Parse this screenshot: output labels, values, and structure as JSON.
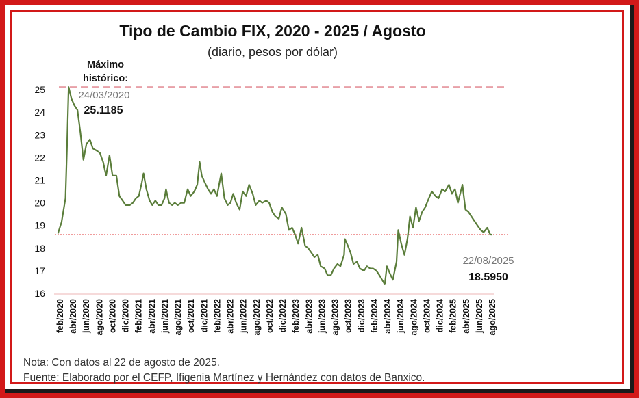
{
  "chart_data": {
    "type": "line",
    "title": "Tipo de Cambio FIX, 2020 - 2025 / Agosto",
    "subtitle": "(diario, pesos por dólar)",
    "ylim": [
      16,
      25.3
    ],
    "yticks": [
      "16",
      "17",
      "18",
      "19",
      "20",
      "21",
      "22",
      "23",
      "24",
      "25"
    ],
    "xticks": [
      "feb/2020",
      "abr/2020",
      "jun/2020",
      "ago/2020",
      "oct/2020",
      "dic/2020",
      "feb/2021",
      "abr/2021",
      "jun/2021",
      "ago/2021",
      "oct/2021",
      "dic/2021",
      "feb/2022",
      "abr/2022",
      "jun/2022",
      "ago/2022",
      "oct/2022",
      "dic/2022",
      "feb/2023",
      "abr/2023",
      "jun/2023",
      "ago/2023",
      "oct/2023",
      "dic/2023",
      "feb/2024",
      "abr/2024",
      "jun/2024",
      "ago/2024",
      "oct/2024",
      "dic/2024",
      "feb/2025",
      "abr/2025",
      "jun/2025",
      "ago/2025"
    ],
    "grid": false,
    "series": [
      {
        "color": "#5a7d3a",
        "points": [
          [
            "2020-02-03",
            18.65
          ],
          [
            "2020-02-20",
            19.15
          ],
          [
            "2020-03-09",
            20.2
          ],
          [
            "2020-03-16",
            22.3
          ],
          [
            "2020-03-24",
            25.1185
          ],
          [
            "2020-04-06",
            24.6
          ],
          [
            "2020-04-20",
            24.3
          ],
          [
            "2020-05-04",
            24.1
          ],
          [
            "2020-05-18",
            23.1
          ],
          [
            "2020-06-01",
            21.9
          ],
          [
            "2020-06-15",
            22.6
          ],
          [
            "2020-07-01",
            22.8
          ],
          [
            "2020-07-15",
            22.4
          ],
          [
            "2020-08-03",
            22.3
          ],
          [
            "2020-08-17",
            22.2
          ],
          [
            "2020-09-01",
            21.8
          ],
          [
            "2020-09-15",
            21.2
          ],
          [
            "2020-10-01",
            22.1
          ],
          [
            "2020-10-15",
            21.2
          ],
          [
            "2020-11-02",
            21.2
          ],
          [
            "2020-11-16",
            20.3
          ],
          [
            "2020-12-01",
            20.1
          ],
          [
            "2020-12-15",
            19.9
          ],
          [
            "2021-01-04",
            19.9
          ],
          [
            "2021-01-18",
            20.0
          ],
          [
            "2021-02-01",
            20.2
          ],
          [
            "2021-02-15",
            20.3
          ],
          [
            "2021-03-01",
            20.9
          ],
          [
            "2021-03-09",
            21.3
          ],
          [
            "2021-03-22",
            20.6
          ],
          [
            "2021-04-06",
            20.1
          ],
          [
            "2021-04-19",
            19.9
          ],
          [
            "2021-05-03",
            20.1
          ],
          [
            "2021-05-17",
            19.9
          ],
          [
            "2021-06-01",
            19.9
          ],
          [
            "2021-06-15",
            20.2
          ],
          [
            "2021-06-22",
            20.6
          ],
          [
            "2021-07-06",
            20.0
          ],
          [
            "2021-07-20",
            19.9
          ],
          [
            "2021-08-02",
            20.0
          ],
          [
            "2021-08-16",
            19.9
          ],
          [
            "2021-09-01",
            20.0
          ],
          [
            "2021-09-15",
            20.0
          ],
          [
            "2021-10-01",
            20.6
          ],
          [
            "2021-10-15",
            20.3
          ],
          [
            "2021-11-01",
            20.5
          ],
          [
            "2021-11-15",
            20.8
          ],
          [
            "2021-11-26",
            21.8
          ],
          [
            "2021-12-06",
            21.2
          ],
          [
            "2021-12-20",
            20.9
          ],
          [
            "2022-01-04",
            20.6
          ],
          [
            "2022-01-18",
            20.4
          ],
          [
            "2022-02-01",
            20.6
          ],
          [
            "2022-02-15",
            20.3
          ],
          [
            "2022-03-07",
            21.3
          ],
          [
            "2022-03-22",
            20.2
          ],
          [
            "2022-04-06",
            19.9
          ],
          [
            "2022-04-19",
            20.0
          ],
          [
            "2022-05-02",
            20.4
          ],
          [
            "2022-05-16",
            20.0
          ],
          [
            "2022-06-01",
            19.7
          ],
          [
            "2022-06-15",
            20.5
          ],
          [
            "2022-07-01",
            20.3
          ],
          [
            "2022-07-15",
            20.8
          ],
          [
            "2022-08-01",
            20.4
          ],
          [
            "2022-08-15",
            19.9
          ],
          [
            "2022-09-01",
            20.1
          ],
          [
            "2022-09-15",
            20.0
          ],
          [
            "2022-10-03",
            20.1
          ],
          [
            "2022-10-17",
            20.0
          ],
          [
            "2022-11-01",
            19.6
          ],
          [
            "2022-11-15",
            19.4
          ],
          [
            "2022-12-01",
            19.3
          ],
          [
            "2022-12-15",
            19.8
          ],
          [
            "2023-01-03",
            19.5
          ],
          [
            "2023-01-17",
            18.8
          ],
          [
            "2023-02-01",
            18.9
          ],
          [
            "2023-02-15",
            18.6
          ],
          [
            "2023-03-01",
            18.2
          ],
          [
            "2023-03-17",
            18.9
          ],
          [
            "2023-04-03",
            18.1
          ],
          [
            "2023-04-17",
            18.0
          ],
          [
            "2023-05-02",
            17.8
          ],
          [
            "2023-05-16",
            17.6
          ],
          [
            "2023-06-01",
            17.7
          ],
          [
            "2023-06-15",
            17.2
          ],
          [
            "2023-07-03",
            17.1
          ],
          [
            "2023-07-17",
            16.8
          ],
          [
            "2023-08-01",
            16.8
          ],
          [
            "2023-08-16",
            17.1
          ],
          [
            "2023-09-01",
            17.3
          ],
          [
            "2023-09-15",
            17.2
          ],
          [
            "2023-10-02",
            17.7
          ],
          [
            "2023-10-06",
            18.4
          ],
          [
            "2023-10-20",
            18.1
          ],
          [
            "2023-11-01",
            17.8
          ],
          [
            "2023-11-15",
            17.3
          ],
          [
            "2023-12-01",
            17.4
          ],
          [
            "2023-12-15",
            17.1
          ],
          [
            "2024-01-03",
            17.0
          ],
          [
            "2024-01-17",
            17.2
          ],
          [
            "2024-02-01",
            17.1
          ],
          [
            "2024-02-15",
            17.1
          ],
          [
            "2024-03-01",
            17.0
          ],
          [
            "2024-03-15",
            16.8
          ],
          [
            "2024-04-09",
            16.4
          ],
          [
            "2024-04-19",
            17.2
          ],
          [
            "2024-05-02",
            16.9
          ],
          [
            "2024-05-17",
            16.6
          ],
          [
            "2024-06-03",
            17.4
          ],
          [
            "2024-06-11",
            18.8
          ],
          [
            "2024-06-25",
            18.2
          ],
          [
            "2024-07-10",
            17.7
          ],
          [
            "2024-07-24",
            18.4
          ],
          [
            "2024-08-05",
            19.4
          ],
          [
            "2024-08-19",
            18.9
          ],
          [
            "2024-09-02",
            19.8
          ],
          [
            "2024-09-16",
            19.2
          ],
          [
            "2024-10-01",
            19.6
          ],
          [
            "2024-10-15",
            19.8
          ],
          [
            "2024-11-01",
            20.2
          ],
          [
            "2024-11-15",
            20.5
          ],
          [
            "2024-12-02",
            20.3
          ],
          [
            "2024-12-16",
            20.2
          ],
          [
            "2025-01-02",
            20.6
          ],
          [
            "2025-01-16",
            20.5
          ],
          [
            "2025-02-03",
            20.8
          ],
          [
            "2025-02-17",
            20.4
          ],
          [
            "2025-03-03",
            20.6
          ],
          [
            "2025-03-17",
            20.0
          ],
          [
            "2025-04-07",
            20.8
          ],
          [
            "2025-04-21",
            19.7
          ],
          [
            "2025-05-05",
            19.6
          ],
          [
            "2025-05-19",
            19.4
          ],
          [
            "2025-06-02",
            19.2
          ],
          [
            "2025-06-16",
            19.0
          ],
          [
            "2025-07-01",
            18.8
          ],
          [
            "2025-07-15",
            18.7
          ],
          [
            "2025-08-01",
            18.9
          ],
          [
            "2025-08-15",
            18.6
          ],
          [
            "2025-08-22",
            18.595
          ]
        ]
      }
    ],
    "reference_lines": [
      {
        "value": 25.1185,
        "color": "#e8a0a8",
        "style": "dashed"
      },
      {
        "value": 18.595,
        "color": "#e23a3a",
        "style": "dotted"
      }
    ],
    "annotations": {
      "max_label_line1": "Máximo",
      "max_label_line2": "histórico:",
      "max_date": "24/03/2020",
      "max_value": "25.1185",
      "last_date": "22/08/2025",
      "last_value": "18.5950"
    }
  },
  "notes": {
    "line1": "Nota: Con datos al 22 de agosto de 2025.",
    "line2": "Fuente: Elaborado por el CEFP, Ifigenia Martínez y Hernández con datos de Banxico."
  }
}
